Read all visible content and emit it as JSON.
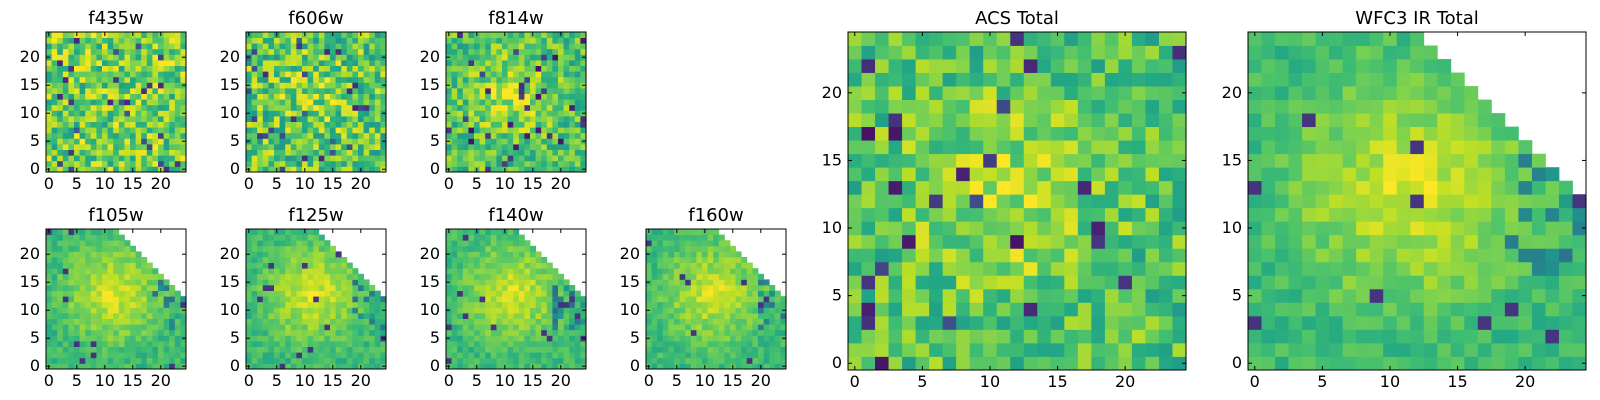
{
  "colors": {
    "colormap": "viridis",
    "low": "#440154",
    "mid": "#21918c",
    "high": "#fde725",
    "masked": "#ffffff"
  },
  "chart_data": [
    {
      "type": "heatmap",
      "title": "f435w",
      "grid_size": 25,
      "xticks": [
        0,
        5,
        10,
        15,
        20
      ],
      "yticks": [
        0,
        5,
        10,
        15,
        20
      ],
      "xlim": [
        0,
        25
      ],
      "ylim": [
        0,
        25
      ],
      "texture": "noise"
    },
    {
      "type": "heatmap",
      "title": "f606w",
      "grid_size": 25,
      "xticks": [
        0,
        5,
        10,
        15,
        20
      ],
      "yticks": [
        0,
        5,
        10,
        15,
        20
      ],
      "xlim": [
        0,
        25
      ],
      "ylim": [
        0,
        25
      ],
      "texture": "noise-faint-center"
    },
    {
      "type": "heatmap",
      "title": "f814w",
      "grid_size": 25,
      "xticks": [
        0,
        5,
        10,
        15,
        20
      ],
      "yticks": [
        0,
        5,
        10,
        15,
        20
      ],
      "xlim": [
        0,
        25
      ],
      "ylim": [
        0,
        25
      ],
      "texture": "noise-center"
    },
    {
      "type": "heatmap",
      "title": "f105w",
      "grid_size": 25,
      "xticks": [
        0,
        5,
        10,
        15,
        20
      ],
      "yticks": [
        0,
        5,
        10,
        15,
        20
      ],
      "xlim": [
        0,
        25
      ],
      "ylim": [
        0,
        25
      ],
      "texture": "smooth-center",
      "masked_upper_right_corner": true
    },
    {
      "type": "heatmap",
      "title": "f125w",
      "grid_size": 25,
      "xticks": [
        0,
        5,
        10,
        15,
        20
      ],
      "yticks": [
        0,
        5,
        10,
        15,
        20
      ],
      "xlim": [
        0,
        25
      ],
      "ylim": [
        0,
        25
      ],
      "texture": "smooth-center",
      "masked_upper_right_corner": true
    },
    {
      "type": "heatmap",
      "title": "f140w",
      "grid_size": 25,
      "xticks": [
        0,
        5,
        10,
        15,
        20
      ],
      "yticks": [
        0,
        5,
        10,
        15,
        20
      ],
      "xlim": [
        0,
        25
      ],
      "ylim": [
        0,
        25
      ],
      "texture": "smooth-center",
      "masked_upper_right_corner": true
    },
    {
      "type": "heatmap",
      "title": "f160w",
      "grid_size": 25,
      "xticks": [
        0,
        5,
        10,
        15,
        20
      ],
      "yticks": [
        0,
        5,
        10,
        15,
        20
      ],
      "xlim": [
        0,
        25
      ],
      "ylim": [
        0,
        25
      ],
      "texture": "smooth-center",
      "masked_upper_right_corner": true
    },
    {
      "type": "heatmap",
      "title": "ACS Total",
      "grid_size": 25,
      "xticks": [
        0,
        5,
        10,
        15,
        20
      ],
      "yticks": [
        0,
        5,
        10,
        15,
        20
      ],
      "xlim": [
        0,
        25
      ],
      "ylim": [
        0,
        25
      ],
      "texture": "noise-center"
    },
    {
      "type": "heatmap",
      "title": "WFC3 IR Total",
      "grid_size": 25,
      "xticks": [
        0,
        5,
        10,
        15,
        20
      ],
      "yticks": [
        0,
        5,
        10,
        15,
        20
      ],
      "xlim": [
        0,
        25
      ],
      "ylim": [
        0,
        25
      ],
      "texture": "smooth-center",
      "masked_upper_right_corner": true
    }
  ]
}
